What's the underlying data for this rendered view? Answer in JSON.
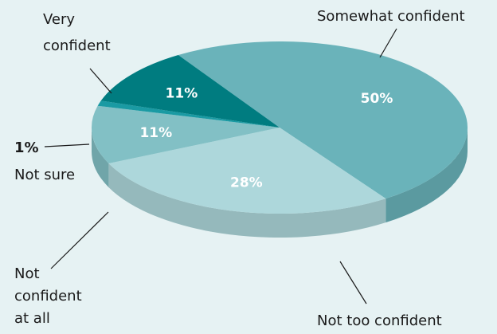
{
  "chart_data": {
    "type": "pie",
    "title": "",
    "legend": "none",
    "slices": [
      {
        "label": "Somewhat confident",
        "value": 50,
        "value_text": "50%",
        "color": "#6ab3ba"
      },
      {
        "label": "Not too confident",
        "value": 28,
        "value_text": "28%",
        "color": "#add7db"
      },
      {
        "label": "Not confident at all",
        "value": 11,
        "value_text": "11%",
        "color": "#82c0c5"
      },
      {
        "label": "Not sure",
        "value": 1,
        "value_text": "1%",
        "color": "#1a9aa3"
      },
      {
        "label": "Very confident",
        "value": 11,
        "value_text": "11%",
        "color": "#007c80"
      }
    ]
  },
  "labels": {
    "somewhat_confident": "Somewhat confident",
    "not_too_confident": "Not too confident",
    "not_confident_line1": "Not",
    "not_confident_line2": "confident",
    "not_confident_line3": "at all",
    "not_sure_pct": "1%",
    "not_sure": "Not sure",
    "very_confident_line1": "Very",
    "very_confident_line2": "confident"
  }
}
